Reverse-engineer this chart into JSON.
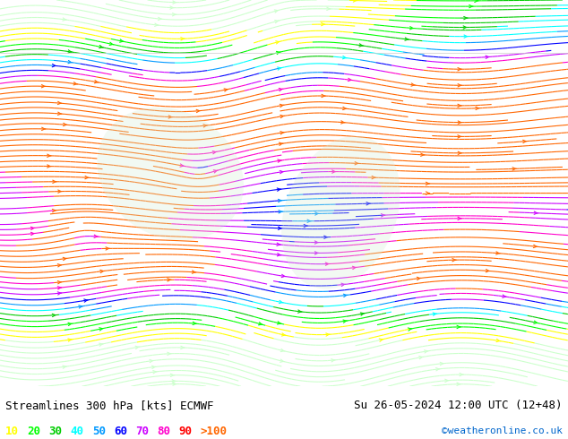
{
  "title_left": "Streamlines 300 hPa [kts] ECMWF",
  "title_right": "Su 26-05-2024 12:00 UTC (12+48)",
  "credit": "©weatheronline.co.uk",
  "legend_values": [
    "10",
    "20",
    "30",
    "40",
    "50",
    "60",
    "70",
    "80",
    "90",
    ">100"
  ],
  "legend_colors": [
    "#ffff00",
    "#00ff00",
    "#00cc00",
    "#00ffff",
    "#0099ff",
    "#0000ff",
    "#cc00ff",
    "#ff00cc",
    "#ff0000",
    "#ff6600"
  ],
  "bg_color": "#ffffff",
  "map_bg": "#e8f4e8",
  "fig_width": 6.34,
  "fig_height": 4.9,
  "dpi": 100,
  "bottom_bar_color": "#ffffff",
  "title_color": "#000000",
  "credit_color": "#0066cc"
}
